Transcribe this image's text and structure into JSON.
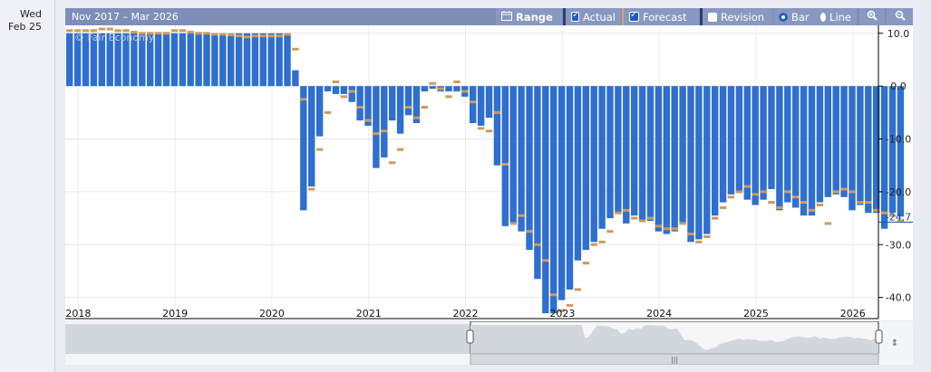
{
  "date_column": {
    "weekday": "Wed",
    "day": "Feb 25"
  },
  "toolbar": {
    "range_title": "Nov 2017 – Mar 2026",
    "range_label": "Range",
    "actual_label": "Actual",
    "forecast_label": "Forecast",
    "revision_label": "Revision",
    "bar_label": "Bar",
    "line_label": "Line"
  },
  "colors": {
    "actual": "#2e6fcf",
    "forecast": "#cf9a5c",
    "toolbar": "#7d8fb8",
    "highlight": "#1a4fa8"
  },
  "chart_data": {
    "type": "bar",
    "watermark": "© Fair Economy",
    "ylim": [
      -44,
      11.5
    ],
    "y_ticks": [
      10,
      0,
      -10,
      -20,
      -30,
      -40
    ],
    "y_tick_labels": [
      "10.0",
      "0.0",
      "-10.0",
      "-20.0",
      "-30.0",
      "-40.0"
    ],
    "last_value_label": "-24.7",
    "x_ticks": [
      2018,
      2019,
      2020,
      2021,
      2022,
      2023,
      2024,
      2025,
      2026
    ],
    "x_start": 2017.875,
    "series": [
      {
        "name": "Actual",
        "values": [
          10,
          10,
          10,
          10,
          10,
          10,
          10,
          10,
          10,
          10,
          10,
          10,
          10,
          10,
          10,
          10,
          10,
          10,
          10,
          10,
          10,
          10,
          10,
          10,
          10,
          10,
          10,
          10,
          3,
          -23.5,
          -19,
          -9.5,
          -1,
          -1.5,
          -1.5,
          -3,
          -6.5,
          -7.5,
          -15.5,
          -13.5,
          -6.5,
          -9,
          -5.5,
          -7,
          -1,
          -0.5,
          -1,
          -1,
          -1,
          -2,
          -7,
          -7.5,
          -6,
          -15,
          -26.5,
          -26,
          -27.5,
          -31,
          -36.5,
          -43,
          -43,
          -40.5,
          -38.5,
          -33,
          -31,
          -29.5,
          -27,
          -25,
          -24,
          -26,
          -24.5,
          -25.5,
          -25.5,
          -27.5,
          -28,
          -27.5,
          -26,
          -29.5,
          -29,
          -28,
          -24.5,
          -22,
          -20.5,
          -20,
          -21.5,
          -22.5,
          -21.5,
          -19.5,
          -23.5,
          -22,
          -23,
          -24.5,
          -24.5,
          -22,
          -21,
          -20.5,
          -21,
          -23.5,
          -22.5,
          -24,
          -24,
          -27,
          -24,
          -24.7
        ]
      },
      {
        "name": "Forecast",
        "values": [
          10.5,
          10.5,
          10.5,
          10.5,
          10.8,
          10.8,
          10.5,
          10.5,
          10.2,
          10,
          10,
          10,
          10,
          10.5,
          10.5,
          10.2,
          10,
          10,
          9.8,
          9.8,
          9.7,
          9.5,
          9.3,
          9.5,
          9.5,
          9.5,
          9.5,
          9.8,
          7,
          -2.5,
          -19.5,
          -12,
          -5,
          0.8,
          -2,
          -1,
          -4,
          -6.5,
          -9,
          -8.5,
          -14.5,
          -12,
          -4,
          -6,
          -4,
          0.5,
          -0.5,
          -2,
          0.8,
          -1,
          -3,
          -8,
          -8.5,
          -5,
          -14.8,
          -26,
          -24.5,
          -27.5,
          -30,
          -33,
          -39.5,
          -42.5,
          -41.5,
          -38.5,
          -33.5,
          -30,
          -29.5,
          -27.5,
          -24,
          -23.5,
          -25,
          -25.5,
          -25,
          -26.5,
          -27,
          -27,
          -26,
          -28,
          -29.5,
          -28.5,
          -25,
          -23,
          -21,
          -20,
          -19,
          -20.5,
          -20,
          -22,
          -23,
          -20,
          -21,
          -22,
          -23.5,
          -22.5,
          -26,
          -20,
          -19.5,
          -20,
          -22,
          -22,
          -23.5,
          -24,
          -24.5,
          -25.5,
          -23.5
        ]
      }
    ]
  }
}
